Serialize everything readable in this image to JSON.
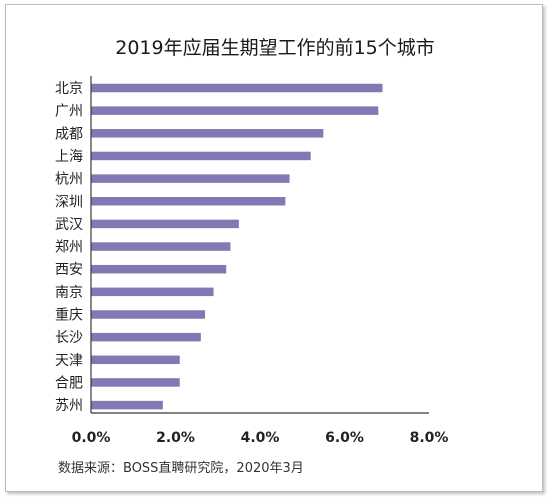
{
  "chart_data": {
    "type": "bar",
    "orientation": "horizontal",
    "title": "2019年应届生期望工作的前15个城市",
    "categories": [
      "北京",
      "广州",
      "成都",
      "上海",
      "杭州",
      "深圳",
      "武汉",
      "郑州",
      "西安",
      "南京",
      "重庆",
      "长沙",
      "天津",
      "合肥",
      "苏州"
    ],
    "values": [
      6.9,
      6.8,
      5.5,
      5.2,
      4.7,
      4.6,
      3.5,
      3.3,
      3.2,
      2.9,
      2.7,
      2.6,
      2.1,
      2.1,
      1.7
    ],
    "value_unit": "%",
    "xlim": [
      0,
      8
    ],
    "xticks": [
      "0.0%",
      "2.0%",
      "4.0%",
      "6.0%",
      "8.0%"
    ],
    "xtick_values": [
      0,
      2,
      4,
      6,
      8
    ],
    "grid": false,
    "legend": "none",
    "bar_color": "#8079b4",
    "axis_color": "#3a3a3a"
  },
  "source": "数据来源：BOSS直聘研究院，2020年3月"
}
